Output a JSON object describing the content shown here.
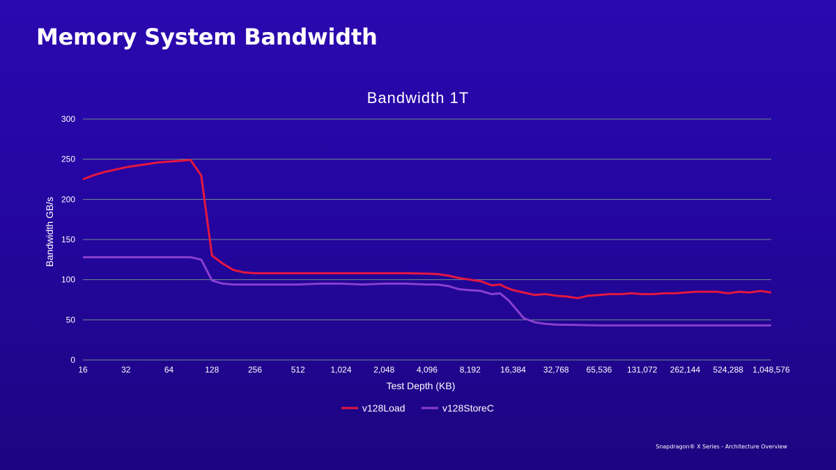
{
  "slide": {
    "title": "Memory System Bandwidth",
    "footer": "Snapdragon® X Series - Architecture Overview"
  },
  "colors": {
    "v128Load": "#e5173f",
    "v128StoreC": "#8a3fd1",
    "grid": "#6f8f8f"
  },
  "chart_data": {
    "type": "line",
    "title": "Bandwidth 1T",
    "xlabel": "Test Depth (KB)",
    "ylabel": "Bandwidth GB/s",
    "ylim": [
      0,
      300
    ],
    "yticks": [
      0,
      50,
      100,
      150,
      200,
      250,
      300
    ],
    "x_scale": "log2",
    "xlim_log2": [
      4,
      20
    ],
    "xticks": [
      "16",
      "32",
      "64",
      "128",
      "256",
      "512",
      "1,024",
      "2,048",
      "4,096",
      "8,192",
      "16,384",
      "32,768",
      "65,536",
      "131,072",
      "262,144",
      "524,288",
      "1,048,576"
    ],
    "legend_position": "bottom",
    "series": [
      {
        "name": "v128Load",
        "color": "#e5173f",
        "points": [
          [
            4.0,
            225
          ],
          [
            4.25,
            230
          ],
          [
            4.5,
            234
          ],
          [
            4.75,
            237
          ],
          [
            5.0,
            240
          ],
          [
            5.25,
            242
          ],
          [
            5.5,
            244
          ],
          [
            5.75,
            246
          ],
          [
            6.0,
            247
          ],
          [
            6.25,
            248
          ],
          [
            6.5,
            249
          ],
          [
            6.75,
            230
          ],
          [
            7.0,
            130
          ],
          [
            7.25,
            120
          ],
          [
            7.5,
            112
          ],
          [
            7.75,
            109
          ],
          [
            8.0,
            108
          ],
          [
            8.5,
            108
          ],
          [
            9.0,
            108
          ],
          [
            9.5,
            108
          ],
          [
            10.0,
            108
          ],
          [
            10.5,
            108
          ],
          [
            11.0,
            108
          ],
          [
            11.5,
            108
          ],
          [
            12.0,
            107.5
          ],
          [
            12.25,
            107
          ],
          [
            12.5,
            105
          ],
          [
            12.75,
            102
          ],
          [
            13.0,
            100
          ],
          [
            13.25,
            98
          ],
          [
            13.5,
            93
          ],
          [
            13.7,
            94
          ],
          [
            13.85,
            90
          ],
          [
            14.0,
            87
          ],
          [
            14.25,
            84
          ],
          [
            14.5,
            81
          ],
          [
            14.75,
            82
          ],
          [
            15.0,
            80
          ],
          [
            15.25,
            79
          ],
          [
            15.5,
            77
          ],
          [
            15.75,
            80
          ],
          [
            16.0,
            81
          ],
          [
            16.25,
            82
          ],
          [
            16.5,
            82
          ],
          [
            16.75,
            83
          ],
          [
            17.0,
            82
          ],
          [
            17.25,
            82
          ],
          [
            17.5,
            83
          ],
          [
            17.75,
            83
          ],
          [
            18.0,
            84
          ],
          [
            18.25,
            85
          ],
          [
            18.5,
            85
          ],
          [
            18.75,
            85
          ],
          [
            19.0,
            83
          ],
          [
            19.25,
            85
          ],
          [
            19.5,
            84
          ],
          [
            19.75,
            86
          ],
          [
            20.0,
            84
          ]
        ]
      },
      {
        "name": "v128StoreC",
        "color": "#8a3fd1",
        "points": [
          [
            4.0,
            128
          ],
          [
            4.5,
            128
          ],
          [
            5.0,
            128
          ],
          [
            5.5,
            128
          ],
          [
            6.0,
            128
          ],
          [
            6.5,
            128
          ],
          [
            6.75,
            125
          ],
          [
            7.0,
            99
          ],
          [
            7.25,
            95
          ],
          [
            7.5,
            94
          ],
          [
            8.0,
            94
          ],
          [
            8.5,
            94
          ],
          [
            9.0,
            94
          ],
          [
            9.5,
            95
          ],
          [
            10.0,
            95
          ],
          [
            10.5,
            94
          ],
          [
            11.0,
            95
          ],
          [
            11.5,
            95
          ],
          [
            12.0,
            94
          ],
          [
            12.25,
            94
          ],
          [
            12.5,
            92
          ],
          [
            12.75,
            88
          ],
          [
            13.0,
            87
          ],
          [
            13.25,
            86
          ],
          [
            13.5,
            82
          ],
          [
            13.7,
            83
          ],
          [
            13.9,
            74
          ],
          [
            14.25,
            52
          ],
          [
            14.5,
            47
          ],
          [
            14.75,
            45
          ],
          [
            15.0,
            44
          ],
          [
            15.5,
            43.5
          ],
          [
            16.0,
            43
          ],
          [
            16.5,
            43
          ],
          [
            17.0,
            43
          ],
          [
            17.5,
            43
          ],
          [
            18.0,
            43
          ],
          [
            18.5,
            43
          ],
          [
            19.0,
            43
          ],
          [
            19.5,
            43
          ],
          [
            20.0,
            43
          ]
        ]
      }
    ]
  }
}
